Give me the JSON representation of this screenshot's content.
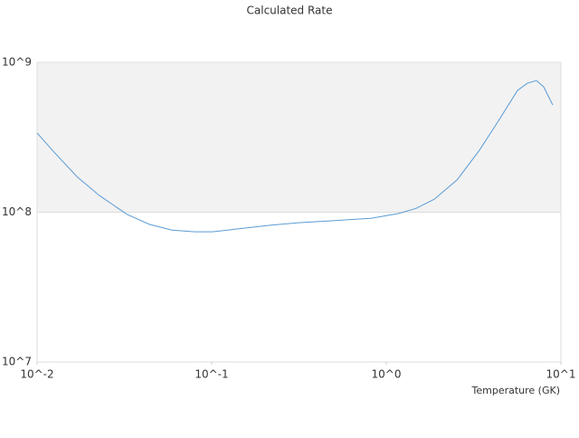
{
  "chart_data": {
    "type": "line",
    "title": "Calculated Rate",
    "x_label": "Temperature (GK)",
    "x_scale": "log",
    "y_scale": "log",
    "x": [
      0.01,
      0.0125,
      0.0169,
      0.0228,
      0.0326,
      0.0439,
      0.0591,
      0.0798,
      0.101,
      0.136,
      0.22,
      0.314,
      0.507,
      0.817,
      1.17,
      1.48,
      1.88,
      2.54,
      3.42,
      4.34,
      5.64,
      6.43,
      7.24,
      7.97,
      8.98
    ],
    "series": [
      {
        "color": "#5b9bd5",
        "values": [
          338000000,
          252000000,
          173000000,
          129000000,
          97000000,
          83000000,
          76000000,
          74000000,
          74000000,
          77000000,
          82000000,
          85000000,
          88000000,
          91000000,
          98000000,
          106000000,
          122000000,
          164000000,
          260000000,
          399000000,
          650000000,
          727000000,
          757000000,
          687000000,
          520000000
        ]
      }
    ],
    "xlim": [
      0.01,
      10
    ],
    "ylim": [
      10000000,
      1000000000
    ],
    "xticks": [
      {
        "value": 0.01,
        "label": "10^-2"
      },
      {
        "value": 0.1,
        "label": "10^-1"
      },
      {
        "value": 1,
        "label": "10^0"
      },
      {
        "value": 10,
        "label": "10^1"
      }
    ],
    "yticks": [
      {
        "value": 10000000,
        "label": "10^7"
      },
      {
        "value": 100000000,
        "label": "10^8"
      },
      {
        "value": 1000000000,
        "label": "10^9"
      }
    ],
    "shaded_band": {
      "from": 100000000,
      "to": 1000000000,
      "color": "#f2f2f2"
    }
  }
}
